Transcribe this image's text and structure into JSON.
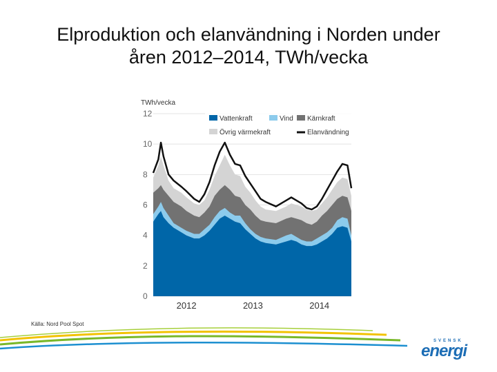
{
  "slide": {
    "title_line1": "Elproduktion och elanvändning i Norden under",
    "title_line2": "åren 2012–2014, TWh/vecka",
    "source": "Källa: Nord Pool Spot",
    "logo_top": "SVENSK",
    "logo_main": "energi"
  },
  "chart_data": {
    "type": "area",
    "ylabel": "TWh/vecka",
    "ylim": [
      0,
      12
    ],
    "yticks": [
      0,
      2,
      4,
      6,
      8,
      10,
      12
    ],
    "x_labels": [
      "2012",
      "2013",
      "2014"
    ],
    "x_label_positions_weeks": [
      26,
      78,
      130
    ],
    "weeks_total": 156,
    "legend": [
      {
        "name": "Vattenkraft",
        "color": "#0066a8",
        "kind": "area"
      },
      {
        "name": "Vind",
        "color": "#8ccbec",
        "kind": "area"
      },
      {
        "name": "Kärnkraft",
        "color": "#727272",
        "kind": "area"
      },
      {
        "name": "Övrig värmekraft",
        "color": "#d4d4d4",
        "kind": "area"
      },
      {
        "name": "Elanvändning",
        "color": "#111111",
        "kind": "line"
      }
    ],
    "series_keypoints_week": [
      0,
      4,
      6,
      8,
      12,
      16,
      22,
      26,
      32,
      36,
      40,
      44,
      48,
      52,
      56,
      60,
      64,
      68,
      72,
      76,
      80,
      84,
      88,
      96,
      104,
      108,
      112,
      116,
      120,
      124,
      128,
      132,
      136,
      140,
      144,
      148,
      152,
      155
    ],
    "cumulative_tops": [
      {
        "name": "Vattenkraft",
        "values": [
          4.9,
          5.4,
          5.6,
          5.2,
          4.8,
          4.5,
          4.2,
          4.0,
          3.8,
          3.8,
          4.0,
          4.3,
          4.7,
          5.1,
          5.3,
          5.1,
          4.9,
          4.8,
          4.4,
          4.1,
          3.8,
          3.6,
          3.5,
          3.4,
          3.6,
          3.7,
          3.6,
          3.4,
          3.3,
          3.3,
          3.4,
          3.6,
          3.8,
          4.1,
          4.5,
          4.6,
          4.5,
          3.6
        ]
      },
      {
        "name": "Vind",
        "values": [
          5.4,
          5.9,
          6.2,
          5.8,
          5.3,
          4.8,
          4.5,
          4.3,
          4.1,
          4.1,
          4.4,
          4.7,
          5.2,
          5.6,
          5.8,
          5.5,
          5.3,
          5.3,
          4.8,
          4.4,
          4.1,
          3.9,
          3.8,
          3.7,
          4.0,
          4.1,
          3.9,
          3.7,
          3.6,
          3.6,
          3.8,
          4.0,
          4.2,
          4.5,
          5.0,
          5.2,
          5.1,
          4.0
        ]
      },
      {
        "name": "Kärnkraft",
        "values": [
          6.8,
          7.1,
          7.3,
          7.0,
          6.6,
          6.2,
          5.9,
          5.6,
          5.3,
          5.2,
          5.5,
          5.9,
          6.6,
          7.0,
          7.3,
          7.0,
          6.6,
          6.5,
          6.0,
          5.7,
          5.3,
          5.0,
          4.9,
          4.8,
          5.1,
          5.2,
          5.1,
          5.0,
          4.8,
          4.7,
          4.9,
          5.3,
          5.6,
          6.0,
          6.4,
          6.6,
          6.5,
          5.6
        ]
      },
      {
        "name": "Övrig värmekraft",
        "values": [
          7.8,
          8.6,
          9.2,
          8.6,
          7.6,
          7.1,
          6.8,
          6.5,
          6.1,
          6.0,
          6.3,
          7.0,
          7.9,
          8.6,
          9.3,
          8.6,
          8.0,
          7.9,
          7.2,
          6.8,
          6.3,
          5.9,
          5.7,
          5.6,
          5.9,
          6.1,
          6.0,
          5.9,
          5.7,
          5.6,
          5.7,
          6.1,
          6.5,
          7.0,
          7.5,
          7.8,
          7.7,
          6.6
        ]
      }
    ],
    "elanvandning": [
      8.1,
      9.0,
      10.1,
      9.2,
      8.0,
      7.6,
      7.2,
      6.9,
      6.4,
      6.2,
      6.7,
      7.5,
      8.6,
      9.5,
      10.1,
      9.3,
      8.7,
      8.6,
      7.9,
      7.4,
      6.9,
      6.4,
      6.2,
      5.9,
      6.3,
      6.5,
      6.3,
      6.1,
      5.8,
      5.7,
      5.9,
      6.4,
      7.0,
      7.6,
      8.2,
      8.7,
      8.6,
      7.1
    ]
  }
}
